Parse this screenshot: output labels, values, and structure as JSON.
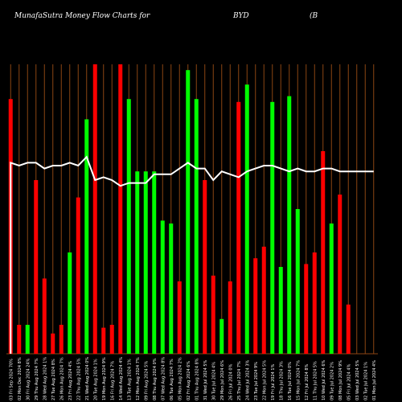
{
  "title": {
    "left": "MunafaSutra  Money Flow  Charts for",
    "ticker": "BYD",
    "paren": "(B"
  },
  "colors": {
    "background": "#000000",
    "gridline": "#8B4513",
    "up": "#00ff00",
    "down": "#ff0000",
    "line": "#ffffff",
    "text": "#ffffff"
  },
  "chart_data": {
    "type": "bar",
    "grid": true,
    "ylim": [
      0,
      100
    ],
    "categories": [
      "03 Fri Sep 2024 70%",
      "02 Mon Dec 2024 8%",
      "30 Fri Aug 2024 24%",
      "29 Thu Aug 2024 7%",
      "28 Wed Aug 2024 1%",
      "27 Tue Aug 2024 8%",
      "26 Mon Aug 2024 7%",
      "23 Fri Aug 2024 4%",
      "22 Thu Aug 2024 5%",
      "21 Wed Aug 2024 0%",
      "20 Tue Aug 2024 1%",
      "19 Mon Aug 2024 9%",
      "16 Fri Aug 2024 7%",
      "14 Wed Aug 2024 4%",
      "13 Tue Aug 2024 1%",
      "12 Mon Aug 2024 7%",
      "09 Fri Aug 2024 5%",
      "08 Thu Aug 2024 0%",
      "07 Wed Aug 2024 8%",
      "06 Tue Aug 2024 7%",
      "05 Mon Aug 2024 2%",
      "02 Fri Aug 2024 6%",
      "01 Thu Aug 2024 8%",
      "31 Wed Jul 2024 5%",
      "30 Tue Jul 2024 4%",
      "29 Mon Jul 2024 6%",
      "26 Fri Jul 2024 0%",
      "25 Thu Jul 2024 7%",
      "24 Wed Jul 2024 3%",
      "23 Tue Jul 2024 9%",
      "22 Mon Jul 2024 5%",
      "19 Fri Jul 2024 1%",
      "18 Thu Jul 2024 3%",
      "16 Tue Jul 2024 0%",
      "15 Mon Jul 2024 7%",
      "12 Fri Jul 2024 8%",
      "11 Thu Jul 2024 5%",
      "10 Wed Jul 2024 6%",
      "09 Tue Jul 2024 2%",
      "08 Mon Jul 2024 9%",
      "05 Fri Jul 2024 4%",
      "03 Wed Jul 2024 5%",
      "02 Tue Jul 2024 1%",
      "01 Mon Jul 2024 4%"
    ],
    "values": [
      88,
      10,
      10,
      60,
      26,
      7,
      10,
      35,
      54,
      81,
      100,
      9,
      10,
      100,
      88,
      63,
      63,
      63,
      46,
      45,
      25,
      98,
      88,
      60,
      27,
      12,
      25,
      87,
      93,
      33,
      37,
      87,
      30,
      89,
      50,
      31,
      35,
      70,
      45,
      55,
      17,
      0,
      0,
      0
    ],
    "colors": [
      "down",
      "down",
      "up",
      "down",
      "down",
      "down",
      "down",
      "up",
      "down",
      "up",
      "down",
      "down",
      "down",
      "down",
      "up",
      "up",
      "up",
      "up",
      "up",
      "up",
      "down",
      "up",
      "up",
      "down",
      "down",
      "up",
      "down",
      "down",
      "up",
      "down",
      "down",
      "up",
      "up",
      "up",
      "up",
      "down",
      "down",
      "down",
      "up",
      "down",
      "down",
      "up",
      "up",
      "up"
    ],
    "line_values": [
      66,
      65,
      66,
      66,
      64,
      65,
      65,
      66,
      65,
      68,
      60,
      61,
      60,
      58,
      59,
      59,
      59,
      62,
      62,
      62,
      64,
      66,
      64,
      64,
      60,
      63,
      62,
      61,
      63,
      64,
      65,
      65,
      64,
      63,
      64,
      63,
      63,
      64,
      64,
      63,
      63,
      63,
      63,
      63
    ]
  }
}
